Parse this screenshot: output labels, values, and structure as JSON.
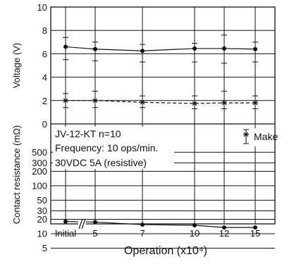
{
  "chart_data": {
    "type": "line",
    "xlabel": "Operation (x10⁴)",
    "x_ticks": [
      "Initial",
      "5",
      "7",
      "10",
      "12",
      "15"
    ],
    "x_positions": [
      0,
      5,
      7,
      10,
      12,
      15
    ],
    "voltage_panel": {
      "ylabel": "Voltage (V)",
      "ylim": [
        0,
        10
      ],
      "y_ticks": [
        "0",
        "2",
        "4",
        "6",
        "8",
        "10"
      ],
      "y_tick_values": [
        0,
        2,
        4,
        6,
        8,
        10
      ],
      "series": [
        {
          "x": [
            0,
            5,
            7,
            10,
            12,
            15
          ],
          "y": [
            6.6,
            6.4,
            6.25,
            6.45,
            6.45,
            6.4
          ],
          "y_high": [
            7.4,
            7.0,
            6.8,
            6.9,
            7.6,
            7.0
          ],
          "y_low": [
            5.5,
            5.4,
            5.3,
            5.3,
            5.2,
            5.3
          ],
          "marker": "dot",
          "line": "solid"
        },
        {
          "x": [
            0,
            5,
            7,
            10,
            12,
            15
          ],
          "y": [
            2.0,
            2.0,
            1.85,
            1.75,
            1.8,
            1.8
          ],
          "y_high": [
            2.6,
            2.8,
            2.4,
            2.4,
            2.8,
            2.4
          ],
          "y_low": [
            1.4,
            1.4,
            1.4,
            1.3,
            1.3,
            1.3
          ],
          "marker": "asterisk",
          "line": "dashed"
        }
      ]
    },
    "resistance_panel": {
      "ylabel": "Contact resistance (mΩ)",
      "y_ticks": [
        "500",
        "300",
        "200",
        "100",
        "50",
        "30",
        "20",
        "10",
        "5"
      ],
      "y_tick_values": [
        500,
        300,
        200,
        100,
        50,
        30,
        20,
        10,
        5
      ],
      "series": [
        {
          "x": [
            0,
            5,
            7,
            10,
            12,
            15
          ],
          "y": [
            18,
            17.5,
            15.5,
            15,
            13.5,
            13.5
          ],
          "marker": "dot",
          "line": "solid"
        }
      ]
    },
    "annotations": {
      "line1": "JV-12-KT n=10",
      "line2": "Frequency: 10 ops/min.",
      "line3": "30VDC 5A (resistive)"
    },
    "legend": {
      "label": "Make",
      "marker": "asterisk",
      "placement": "right"
    },
    "grid": true
  }
}
